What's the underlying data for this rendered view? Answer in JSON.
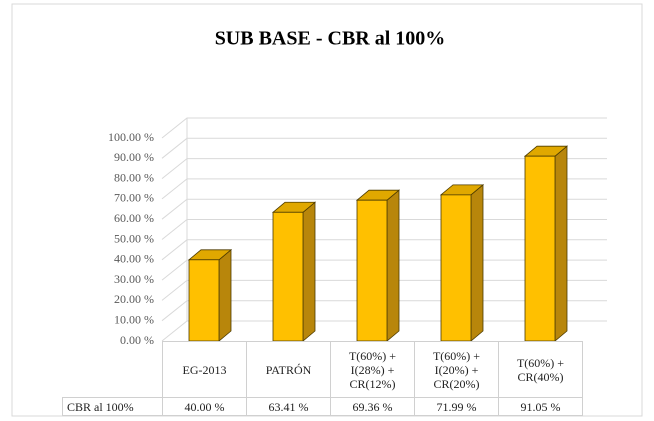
{
  "chart_data": {
    "type": "bar3d",
    "title": "SUB BASE - CBR al 100%",
    "categories": [
      "EG-2013",
      "PATRÓN",
      "T(60%) + I(28%) + CR(12%)",
      "T(60%) + I(20%) + CR(20%)",
      "T(60%) + CR(40%)"
    ],
    "series": [
      {
        "name": "CBR al 100%",
        "color": "#ffc000",
        "values": [
          40.0,
          63.41,
          69.36,
          71.99,
          91.05
        ],
        "value_labels": [
          "40.00 %",
          "63.41 %",
          "69.36 %",
          "71.99 %",
          "91.05 %"
        ]
      }
    ],
    "ylim": [
      0,
      100
    ],
    "yticks": [
      {
        "value": 0,
        "label": "0.00 %"
      },
      {
        "value": 10,
        "label": "10.00 %"
      },
      {
        "value": 20,
        "label": "20.00 %"
      },
      {
        "value": 30,
        "label": "30.00 %"
      },
      {
        "value": 40,
        "label": "40.00 %"
      },
      {
        "value": 50,
        "label": "50.00 %"
      },
      {
        "value": 60,
        "label": "60.00 %"
      },
      {
        "value": 70,
        "label": "70.00 %"
      },
      {
        "value": 80,
        "label": "80.00 %"
      },
      {
        "value": 90,
        "label": "90.00 %"
      },
      {
        "value": 100,
        "label": "100.00 %"
      }
    ],
    "grid": true,
    "data_table": true
  }
}
